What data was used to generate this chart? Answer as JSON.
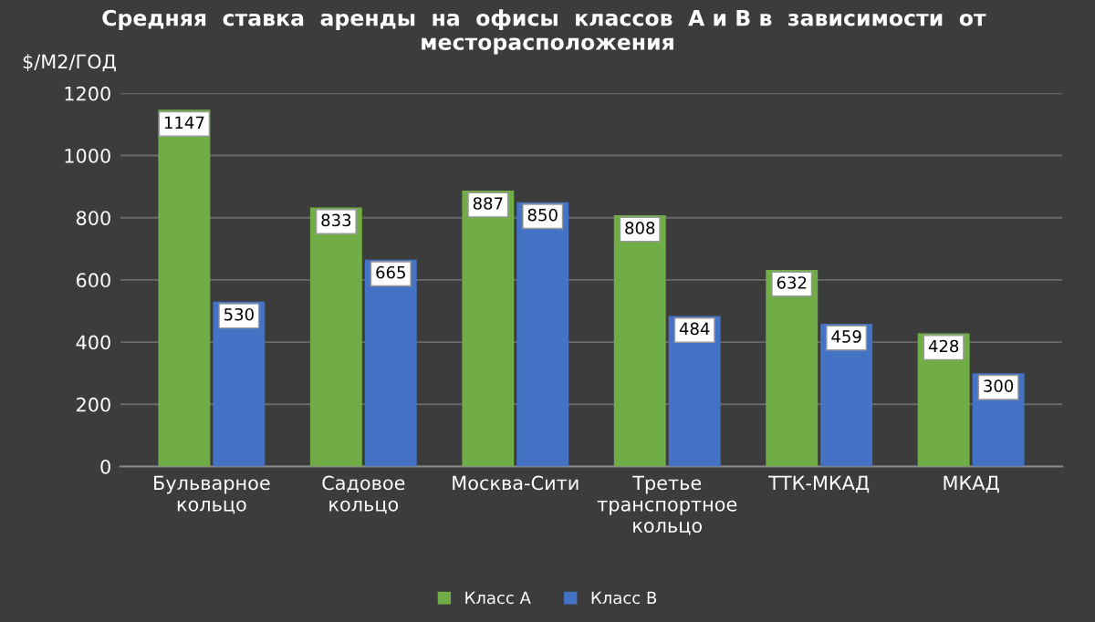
{
  "chart_data": {
    "type": "bar",
    "title": "Средняя  ставка  аренды  на  офисы  классов  А и В в  зависимости  от  месторасположения",
    "ylabel": "$/М2/ГОД",
    "categories": [
      "Бульварное\nкольцо",
      "Садовое\nкольцо",
      "Москва-Сити",
      "Третье\nтранспортное\nкольцо",
      "ТТК-МКАД",
      "МКАД"
    ],
    "series": [
      {
        "name": "Класс А",
        "color": "#70ad47",
        "values": [
          1147,
          833,
          887,
          808,
          632,
          428
        ]
      },
      {
        "name": "Класс В",
        "color": "#4472c4",
        "values": [
          530,
          665,
          850,
          484,
          459,
          300
        ]
      }
    ],
    "ylim": [
      0,
      1200
    ],
    "yticks": [
      0,
      200,
      400,
      600,
      800,
      1000,
      1200
    ],
    "grid": "y",
    "legend": "bottom",
    "data_labels": true
  }
}
